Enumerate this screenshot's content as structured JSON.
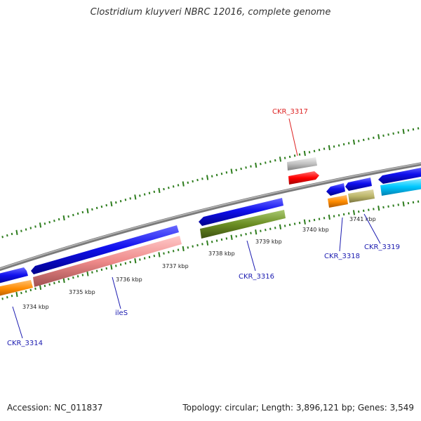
{
  "title": "Clostridium kluyveri NBRC 12016, complete genome",
  "footer": {
    "accession": "Accession: NC_011837",
    "stats": "Topology: circular; Length: 3,896,121 bp; Genes: 3,549"
  },
  "colors": {
    "backbone": "#8c8c8c",
    "tick": "#2e7d1e",
    "label_blue": "#1a1ab0",
    "label_red": "#dd2222"
  },
  "kbp_labels": [
    "3734 kbp",
    "3735 kbp",
    "3736 kbp",
    "3737 kbp",
    "3738 kbp",
    "3739 kbp",
    "3740 kbp",
    "3741 kbp"
  ],
  "genes": [
    {
      "label": "CKR_3314",
      "color": "blue"
    },
    {
      "label": "ileS",
      "color": "blue"
    },
    {
      "label": "CKR_3316",
      "color": "blue"
    },
    {
      "label": "CKR_3317",
      "color": "red"
    },
    {
      "label": "CKR_3318",
      "color": "blue"
    },
    {
      "label": "CKR_3319",
      "color": "blue"
    }
  ]
}
